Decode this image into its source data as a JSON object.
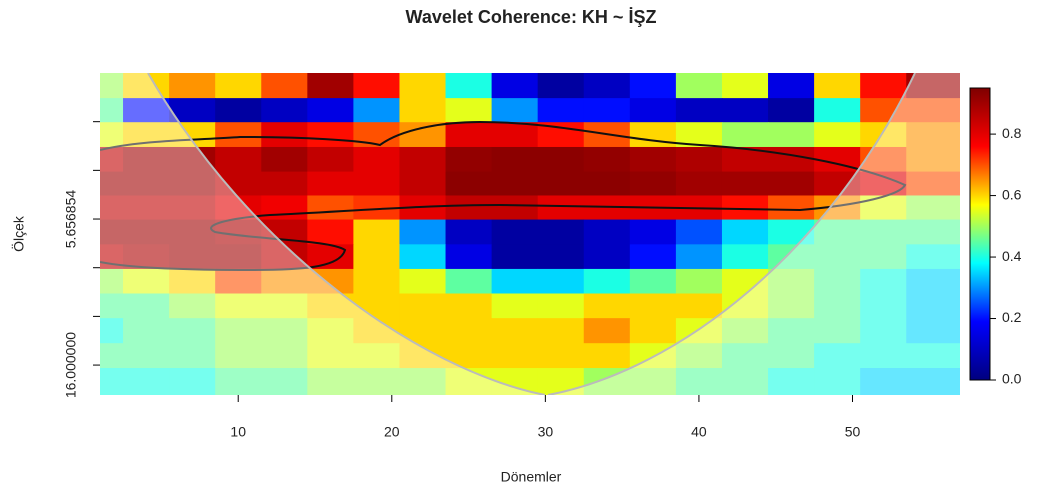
{
  "chart_data": {
    "type": "heatmap",
    "title": "Wavelet Coherence: KH ~ İŞZ",
    "x_label": "Dönemler",
    "y_label": "Ölçek",
    "x": [
      1,
      4,
      7,
      10,
      13,
      16,
      19,
      22,
      25,
      28,
      31,
      34,
      37,
      40,
      43,
      46,
      49,
      52,
      55
    ],
    "y": [
      2.2,
      2.6,
      3.1,
      3.7,
      4.4,
      5.2,
      6.2,
      7.4,
      8.8,
      10.5,
      12.5,
      15,
      17.8
    ],
    "z": [
      [
        0.5,
        0.6,
        0.65,
        0.6,
        0.7,
        0.9,
        0.75,
        0.6,
        0.4,
        0.15,
        0.05,
        0.1,
        0.2,
        0.5,
        0.55,
        0.15,
        0.6,
        0.75,
        0.9
      ],
      [
        0.45,
        0.2,
        0.1,
        0.05,
        0.1,
        0.15,
        0.3,
        0.6,
        0.55,
        0.3,
        0.2,
        0.2,
        0.15,
        0.1,
        0.1,
        0.05,
        0.4,
        0.7,
        0.7
      ],
      [
        0.55,
        0.6,
        0.6,
        0.7,
        0.8,
        0.75,
        0.7,
        0.65,
        0.8,
        0.8,
        0.75,
        0.7,
        0.6,
        0.55,
        0.5,
        0.5,
        0.55,
        0.6,
        0.65
      ],
      [
        0.85,
        0.9,
        0.9,
        0.85,
        0.9,
        0.85,
        0.8,
        0.85,
        0.92,
        0.93,
        0.93,
        0.92,
        0.9,
        0.88,
        0.85,
        0.85,
        0.8,
        0.7,
        0.65
      ],
      [
        0.9,
        0.9,
        0.9,
        0.85,
        0.85,
        0.8,
        0.8,
        0.85,
        0.93,
        0.93,
        0.93,
        0.93,
        0.92,
        0.9,
        0.9,
        0.9,
        0.85,
        0.8,
        0.7
      ],
      [
        0.85,
        0.85,
        0.85,
        0.8,
        0.78,
        0.7,
        0.72,
        0.8,
        0.85,
        0.85,
        0.8,
        0.8,
        0.8,
        0.8,
        0.75,
        0.7,
        0.65,
        0.55,
        0.5
      ],
      [
        0.9,
        0.9,
        0.9,
        0.88,
        0.85,
        0.75,
        0.6,
        0.3,
        0.1,
        0.05,
        0.05,
        0.1,
        0.15,
        0.25,
        0.35,
        0.4,
        0.45,
        0.45,
        0.45
      ],
      [
        0.85,
        0.88,
        0.9,
        0.9,
        0.85,
        0.8,
        0.6,
        0.35,
        0.15,
        0.05,
        0.05,
        0.1,
        0.2,
        0.3,
        0.4,
        0.45,
        0.45,
        0.45,
        0.4
      ],
      [
        0.5,
        0.55,
        0.6,
        0.7,
        0.65,
        0.65,
        0.6,
        0.55,
        0.45,
        0.35,
        0.35,
        0.4,
        0.45,
        0.5,
        0.55,
        0.5,
        0.45,
        0.4,
        0.35
      ],
      [
        0.45,
        0.45,
        0.5,
        0.55,
        0.55,
        0.6,
        0.6,
        0.6,
        0.6,
        0.55,
        0.55,
        0.6,
        0.6,
        0.6,
        0.55,
        0.5,
        0.45,
        0.4,
        0.35
      ],
      [
        0.4,
        0.45,
        0.45,
        0.5,
        0.5,
        0.55,
        0.6,
        0.6,
        0.6,
        0.6,
        0.6,
        0.65,
        0.6,
        0.55,
        0.5,
        0.45,
        0.45,
        0.4,
        0.35
      ],
      [
        0.45,
        0.45,
        0.45,
        0.5,
        0.5,
        0.55,
        0.55,
        0.6,
        0.6,
        0.6,
        0.6,
        0.6,
        0.55,
        0.5,
        0.45,
        0.45,
        0.4,
        0.4,
        0.4
      ],
      [
        0.4,
        0.4,
        0.4,
        0.45,
        0.45,
        0.5,
        0.5,
        0.5,
        0.55,
        0.55,
        0.55,
        0.5,
        0.5,
        0.45,
        0.45,
        0.4,
        0.4,
        0.35,
        0.35
      ]
    ],
    "xlim": [
      1,
      57
    ],
    "xticks": [
      10,
      20,
      30,
      40,
      50
    ],
    "ylim": [
      2,
      19.8
    ],
    "log_y": true,
    "yticks": [
      {
        "value": 2.828427
      },
      {
        "value": 4
      },
      {
        "value": 5.656854,
        "label": "5.656854"
      },
      {
        "value": 8
      },
      {
        "value": 11.313708
      },
      {
        "value": 16,
        "label": "16.000000"
      }
    ],
    "zlim": [
      0,
      0.95
    ],
    "zticks": [
      {
        "value": 0,
        "label": "0.0"
      },
      0.2,
      0.4,
      0.6,
      0.8
    ],
    "colormap": [
      "#00007f",
      "#0000ff",
      "#00ffff",
      "#ffff00",
      "#ff0000",
      "#7f0000"
    ]
  }
}
